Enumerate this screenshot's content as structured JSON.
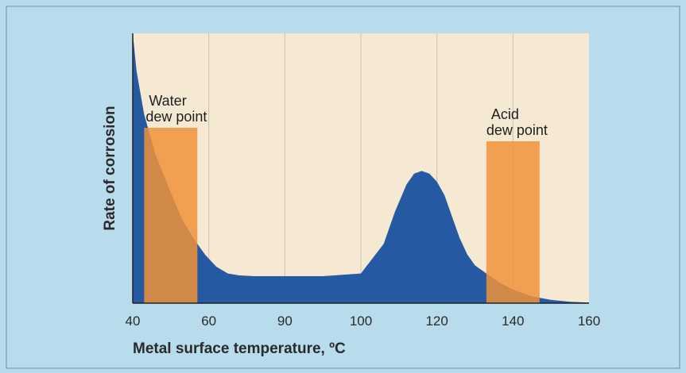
{
  "chart_data": {
    "type": "area",
    "title": "",
    "xlabel": "Metal surface temperature, ºC",
    "ylabel": "Rate of corrosion",
    "xlim": [
      40,
      160
    ],
    "ylim": [
      0,
      100
    ],
    "x_ticks": [
      "40",
      "60",
      "90",
      "100",
      "120",
      "140",
      "160"
    ],
    "grid": "vertical",
    "series": [
      {
        "name": "",
        "color": "#2559a2",
        "x": [
          40,
          41,
          43,
          46,
          50,
          53,
          56,
          59,
          62,
          65,
          68,
          72,
          80,
          90,
          100,
          106,
          109,
          112,
          114,
          116,
          118,
          120,
          122,
          124,
          126,
          128,
          130,
          133,
          136,
          140,
          145,
          150,
          155,
          160
        ],
        "y": [
          100,
          86,
          70,
          55,
          41,
          31,
          24,
          18,
          13.5,
          11,
          10.3,
          10,
          10,
          10,
          11,
          22,
          34,
          44,
          48,
          49,
          48,
          45,
          40,
          32,
          24,
          18,
          14,
          11,
          8,
          5,
          2.5,
          1.2,
          0.5,
          0.2
        ]
      }
    ],
    "bands": [
      {
        "label_line1": "Water",
        "label_line2": "dew point",
        "x_start": 43,
        "x_end": 57,
        "height": 65,
        "color": "#f0923a"
      },
      {
        "label_line1": "Acid",
        "label_line2": "dew point",
        "x_start": 133,
        "x_end": 147,
        "height": 60,
        "color": "#f0923a"
      }
    ],
    "colors": {
      "background": "#b9dcec",
      "plot_background": "#f6e9d4",
      "curve_fill": "#2559a2",
      "band": "#f0923a",
      "text": "#2a2a2a"
    }
  }
}
